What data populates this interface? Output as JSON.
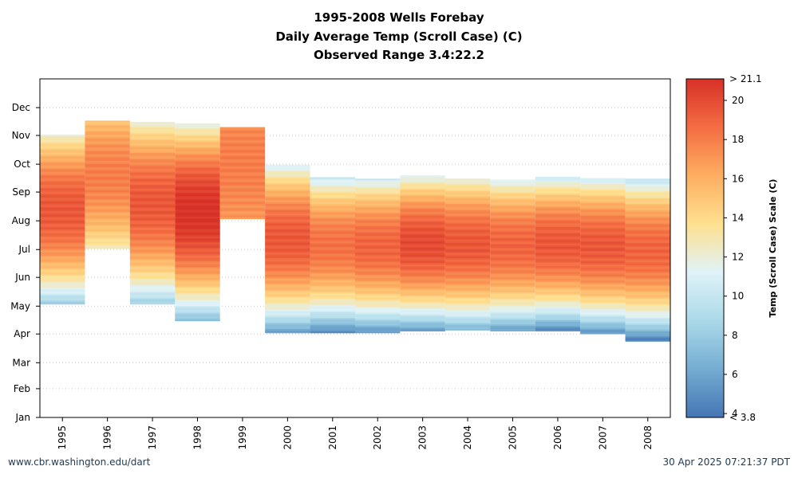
{
  "chart_data": {
    "type": "heatmap",
    "title": "1995-2008 Wells Forebay",
    "subtitle": "Daily Average Temp (Scroll Case) (C)",
    "subtitle2": "Observed Range 3.4:22.2",
    "xlabel": "",
    "ylabel": "",
    "x_categories": [
      "1995",
      "1996",
      "1997",
      "1998",
      "1999",
      "2000",
      "2001",
      "2002",
      "2003",
      "2004",
      "2005",
      "2006",
      "2007",
      "2008"
    ],
    "y_ticks": [
      "Jan",
      "Feb",
      "Mar",
      "Apr",
      "May",
      "Jun",
      "Jul",
      "Aug",
      "Sep",
      "Oct",
      "Nov",
      "Dec"
    ],
    "y_range_days": [
      1,
      366
    ],
    "grid": "horizontal dotted",
    "colorbar": {
      "label": "Temp (Scroll Case) Scale (C)",
      "min": 3.8,
      "max": 21.1,
      "ticks": [
        4,
        6,
        8,
        10,
        12,
        14,
        16,
        18,
        20
      ],
      "top_label": "> 21.1",
      "bottom_label": "< 3.8",
      "colors": [
        "#4575b4",
        "#74add1",
        "#abd9e9",
        "#e0f3f8",
        "#fee090",
        "#fdae61",
        "#f46d43",
        "#d73027"
      ]
    },
    "years": [
      {
        "year": "1995",
        "start_day": 123,
        "end_day": 305,
        "min_temp": 8.5,
        "peak_temp": 19.5
      },
      {
        "year": "1996",
        "start_day": 183,
        "end_day": 320,
        "min_temp": 13.0,
        "peak_temp": 18.0
      },
      {
        "year": "1997",
        "start_day": 123,
        "end_day": 319,
        "min_temp": 8.5,
        "peak_temp": 19.5
      },
      {
        "year": "1998",
        "start_day": 105,
        "end_day": 317,
        "min_temp": 7.5,
        "peak_temp": 21.1
      },
      {
        "year": "1999",
        "start_day": 215,
        "end_day": 313,
        "min_temp": 17.0,
        "peak_temp": 18.0
      },
      {
        "year": "2000",
        "start_day": 92,
        "end_day": 273,
        "min_temp": 6.0,
        "peak_temp": 19.5
      },
      {
        "year": "2001",
        "start_day": 92,
        "end_day": 260,
        "min_temp": 5.0,
        "peak_temp": 18.5
      },
      {
        "year": "2002",
        "start_day": 92,
        "end_day": 258,
        "min_temp": 5.5,
        "peak_temp": 19.0
      },
      {
        "year": "2003",
        "start_day": 94,
        "end_day": 261,
        "min_temp": 6.0,
        "peak_temp": 20.0
      },
      {
        "year": "2004",
        "start_day": 95,
        "end_day": 258,
        "min_temp": 7.0,
        "peak_temp": 19.5
      },
      {
        "year": "2005",
        "start_day": 94,
        "end_day": 257,
        "min_temp": 6.0,
        "peak_temp": 19.0
      },
      {
        "year": "2006",
        "start_day": 94,
        "end_day": 260,
        "min_temp": 5.0,
        "peak_temp": 19.5
      },
      {
        "year": "2007",
        "start_day": 91,
        "end_day": 258,
        "min_temp": 5.5,
        "peak_temp": 19.5
      },
      {
        "year": "2008",
        "start_day": 83,
        "end_day": 258,
        "min_temp": 4.5,
        "peak_temp": 19.0
      }
    ]
  },
  "footer": {
    "left": "www.cbr.washington.edu/dart",
    "right": "30 Apr 2025 07:21:37 PDT"
  }
}
